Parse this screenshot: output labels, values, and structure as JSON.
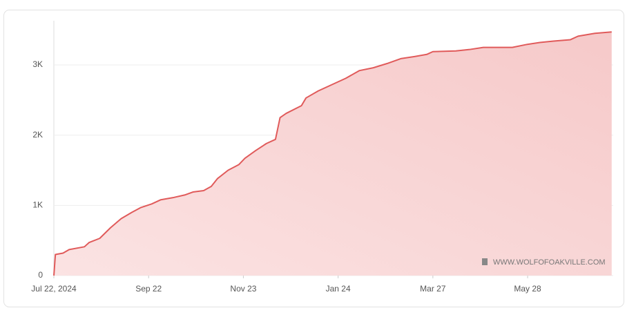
{
  "chart_data": {
    "type": "area",
    "x": [
      0,
      1,
      6,
      10,
      20,
      23,
      30,
      37,
      44,
      51,
      57,
      64,
      70,
      78,
      86,
      91,
      98,
      103,
      107,
      114,
      121,
      125,
      132,
      139,
      145,
      148,
      152,
      162,
      165,
      173,
      182,
      191,
      200,
      209,
      218,
      227,
      236,
      244,
      248,
      263,
      272,
      281,
      290,
      300,
      309,
      318,
      327,
      338,
      343,
      354,
      365
    ],
    "values": [
      0,
      300,
      320,
      370,
      410,
      470,
      530,
      680,
      810,
      900,
      970,
      1020,
      1080,
      1110,
      1150,
      1190,
      1210,
      1270,
      1380,
      1500,
      1580,
      1670,
      1780,
      1880,
      1940,
      2250,
      2310,
      2420,
      2530,
      2630,
      2720,
      2810,
      2920,
      2960,
      3020,
      3090,
      3120,
      3150,
      3190,
      3200,
      3220,
      3250,
      3250,
      3250,
      3290,
      3320,
      3340,
      3360,
      3410,
      3450,
      3470
    ],
    "color": "#e05a5a",
    "xlim": [
      0,
      366
    ],
    "xticks": [
      {
        "value": 0,
        "label": "Jul 22, 2024"
      },
      {
        "value": 62,
        "label": "Sep 22"
      },
      {
        "value": 124,
        "label": "Nov 23"
      },
      {
        "value": 186,
        "label": "Jan 24"
      },
      {
        "value": 248,
        "label": "Mar 27"
      },
      {
        "value": 310,
        "label": "May 28"
      }
    ],
    "ylim": [
      0,
      3630
    ],
    "yticks": [
      0,
      {
        "value": 1000,
        "label": "1K"
      },
      {
        "value": 2000,
        "label": "2K"
      },
      {
        "value": 3000,
        "label": "3K"
      }
    ],
    "grid": true,
    "annotation": "WWW.WOLFOFOAKVILLE.COM"
  }
}
